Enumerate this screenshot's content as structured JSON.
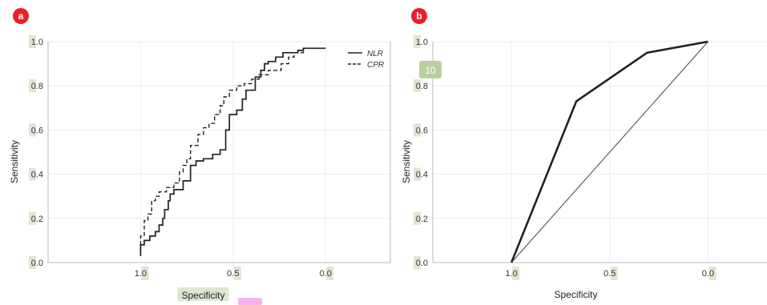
{
  "colors": {
    "panel_badge": "#e8202a",
    "tick_highlight": "#dfe6d2",
    "overlay_badge": "#b9cf9f",
    "overlay_badge_pink": "#f4b6e8",
    "line": "#222222",
    "grid": "#eeeeee",
    "frame": "#bbbbbb"
  },
  "overlay": {
    "label": "10"
  },
  "chart_data": [
    {
      "type": "line",
      "panel": "a",
      "xlabel": "Specificity",
      "ylabel": "Sensitivity",
      "x_axis_reversed": true,
      "xlim": [
        1.5,
        -0.35
      ],
      "ylim": [
        0.0,
        1.0
      ],
      "x_ticks": [
        {
          "value": 1.0,
          "label": "1.0"
        },
        {
          "value": 0.5,
          "label": "0.5"
        },
        {
          "value": 0.0,
          "label": "0.0"
        }
      ],
      "y_ticks": [
        {
          "value": 0.0,
          "label": "0.0"
        },
        {
          "value": 0.2,
          "label": "0.2"
        },
        {
          "value": 0.4,
          "label": "0.4"
        },
        {
          "value": 0.6,
          "label": "0.6"
        },
        {
          "value": 0.8,
          "label": "0.8"
        },
        {
          "value": 1.0,
          "label": "1.0"
        }
      ],
      "grid": true,
      "legend_position": "top-right",
      "series": [
        {
          "name": "NLR",
          "style": "solid",
          "points": [
            [
              1.0,
              0.03
            ],
            [
              1.0,
              0.08
            ],
            [
              0.98,
              0.08
            ],
            [
              0.98,
              0.1
            ],
            [
              0.95,
              0.1
            ],
            [
              0.95,
              0.12
            ],
            [
              0.92,
              0.12
            ],
            [
              0.92,
              0.14
            ],
            [
              0.9,
              0.14
            ],
            [
              0.9,
              0.17
            ],
            [
              0.88,
              0.17
            ],
            [
              0.88,
              0.2
            ],
            [
              0.87,
              0.2
            ],
            [
              0.87,
              0.24
            ],
            [
              0.85,
              0.24
            ],
            [
              0.85,
              0.28
            ],
            [
              0.84,
              0.28
            ],
            [
              0.84,
              0.31
            ],
            [
              0.82,
              0.31
            ],
            [
              0.82,
              0.33
            ],
            [
              0.77,
              0.33
            ],
            [
              0.77,
              0.37
            ],
            [
              0.73,
              0.37
            ],
            [
              0.73,
              0.44
            ],
            [
              0.7,
              0.44
            ],
            [
              0.7,
              0.46
            ],
            [
              0.66,
              0.46
            ],
            [
              0.66,
              0.47
            ],
            [
              0.61,
              0.47
            ],
            [
              0.61,
              0.49
            ],
            [
              0.57,
              0.49
            ],
            [
              0.57,
              0.51
            ],
            [
              0.54,
              0.51
            ],
            [
              0.54,
              0.6
            ],
            [
              0.52,
              0.6
            ],
            [
              0.52,
              0.67
            ],
            [
              0.48,
              0.67
            ],
            [
              0.48,
              0.69
            ],
            [
              0.45,
              0.69
            ],
            [
              0.45,
              0.74
            ],
            [
              0.43,
              0.74
            ],
            [
              0.43,
              0.78
            ],
            [
              0.38,
              0.78
            ],
            [
              0.38,
              0.84
            ],
            [
              0.35,
              0.84
            ],
            [
              0.35,
              0.87
            ],
            [
              0.33,
              0.87
            ],
            [
              0.33,
              0.9
            ],
            [
              0.31,
              0.9
            ],
            [
              0.31,
              0.91
            ],
            [
              0.27,
              0.91
            ],
            [
              0.27,
              0.93
            ],
            [
              0.23,
              0.93
            ],
            [
              0.23,
              0.95
            ],
            [
              0.15,
              0.95
            ],
            [
              0.15,
              0.96
            ],
            [
              0.12,
              0.96
            ],
            [
              0.12,
              0.97
            ],
            [
              0.0,
              0.97
            ]
          ]
        },
        {
          "name": "CPR",
          "style": "dashed",
          "points": [
            [
              1.0,
              0.05
            ],
            [
              1.0,
              0.12
            ],
            [
              0.98,
              0.12
            ],
            [
              0.98,
              0.19
            ],
            [
              0.96,
              0.19
            ],
            [
              0.96,
              0.22
            ],
            [
              0.94,
              0.22
            ],
            [
              0.94,
              0.28
            ],
            [
              0.92,
              0.28
            ],
            [
              0.92,
              0.3
            ],
            [
              0.9,
              0.3
            ],
            [
              0.9,
              0.32
            ],
            [
              0.86,
              0.32
            ],
            [
              0.86,
              0.34
            ],
            [
              0.82,
              0.34
            ],
            [
              0.82,
              0.36
            ],
            [
              0.79,
              0.36
            ],
            [
              0.79,
              0.41
            ],
            [
              0.77,
              0.41
            ],
            [
              0.77,
              0.44
            ],
            [
              0.75,
              0.44
            ],
            [
              0.75,
              0.47
            ],
            [
              0.73,
              0.47
            ],
            [
              0.73,
              0.53
            ],
            [
              0.69,
              0.53
            ],
            [
              0.69,
              0.58
            ],
            [
              0.66,
              0.58
            ],
            [
              0.66,
              0.61
            ],
            [
              0.63,
              0.61
            ],
            [
              0.63,
              0.63
            ],
            [
              0.6,
              0.63
            ],
            [
              0.6,
              0.67
            ],
            [
              0.57,
              0.67
            ],
            [
              0.57,
              0.71
            ],
            [
              0.55,
              0.71
            ],
            [
              0.55,
              0.75
            ],
            [
              0.52,
              0.75
            ],
            [
              0.52,
              0.78
            ],
            [
              0.48,
              0.78
            ],
            [
              0.48,
              0.8
            ],
            [
              0.44,
              0.8
            ],
            [
              0.44,
              0.81
            ],
            [
              0.4,
              0.81
            ],
            [
              0.4,
              0.83
            ],
            [
              0.36,
              0.83
            ],
            [
              0.36,
              0.85
            ],
            [
              0.31,
              0.85
            ],
            [
              0.31,
              0.87
            ],
            [
              0.24,
              0.87
            ],
            [
              0.24,
              0.9
            ],
            [
              0.2,
              0.9
            ],
            [
              0.2,
              0.93
            ],
            [
              0.17,
              0.93
            ],
            [
              0.17,
              0.95
            ],
            [
              0.12,
              0.95
            ],
            [
              0.12,
              0.97
            ],
            [
              0.0,
              0.97
            ]
          ]
        }
      ]
    },
    {
      "type": "line",
      "panel": "b",
      "xlabel": "Specificity",
      "ylabel": "Sensitivity",
      "x_axis_reversed": true,
      "xlim": [
        1.4,
        -0.3
      ],
      "ylim": [
        0.0,
        1.0
      ],
      "x_ticks": [
        {
          "value": 1.0,
          "label": "1.0"
        },
        {
          "value": 0.5,
          "label": "0.5"
        },
        {
          "value": 0.0,
          "label": "0.0"
        }
      ],
      "y_ticks": [
        {
          "value": 0.0,
          "label": "0.0"
        },
        {
          "value": 0.2,
          "label": "0.2"
        },
        {
          "value": 0.4,
          "label": "0.4"
        },
        {
          "value": 0.6,
          "label": "0.6"
        },
        {
          "value": 0.8,
          "label": "0.8"
        },
        {
          "value": 1.0,
          "label": "1.0"
        }
      ],
      "grid": true,
      "series": [
        {
          "style": "solid-thick",
          "points": [
            [
              1.0,
              0.0
            ],
            [
              0.67,
              0.73
            ],
            [
              0.31,
              0.95
            ],
            [
              0.0,
              1.0
            ]
          ]
        },
        {
          "style": "solid-thin",
          "points": [
            [
              1.0,
              0.0
            ],
            [
              0.0,
              1.0
            ]
          ]
        }
      ]
    }
  ]
}
